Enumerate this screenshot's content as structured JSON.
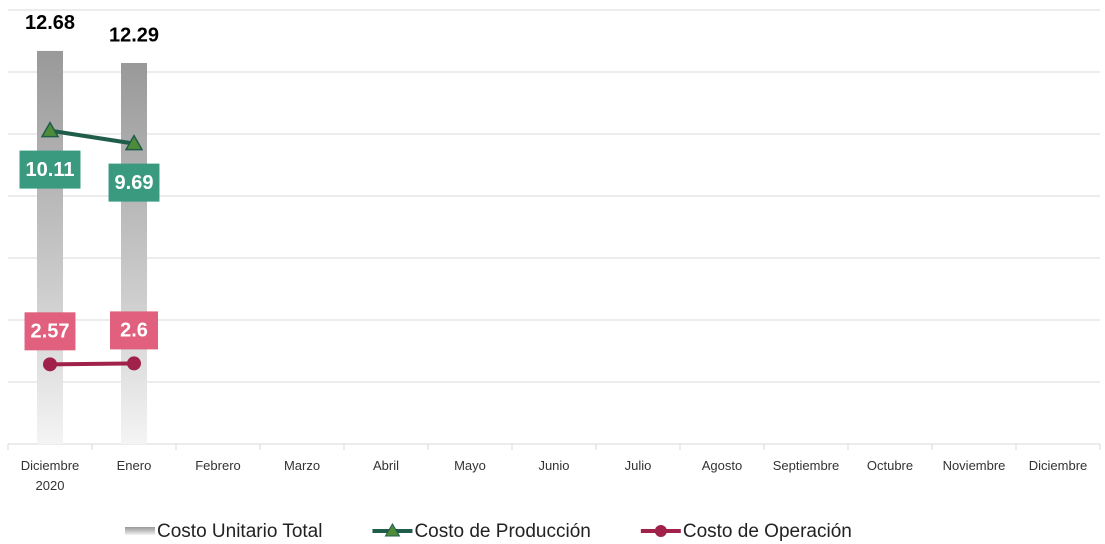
{
  "chart_data": {
    "type": "bar-line",
    "categories": [
      "Diciembre 2020",
      "Enero",
      "Febrero",
      "Marzo",
      "Abril",
      "Mayo",
      "Junio",
      "Julio",
      "Agosto",
      "Septiembre",
      "Octubre",
      "Noviembre",
      "Diciembre"
    ],
    "series": [
      {
        "name": "Costo Unitario Total",
        "type": "bar",
        "color": "#a6a6a6",
        "values": [
          12.68,
          12.29,
          null,
          null,
          null,
          null,
          null,
          null,
          null,
          null,
          null,
          null,
          null
        ]
      },
      {
        "name": "Costo de Producción",
        "type": "line",
        "color": "#1f5c4a",
        "marker": "triangle",
        "marker_color": "#4e8c3a",
        "label_color": "#3a9a80",
        "values": [
          10.11,
          9.69,
          null,
          null,
          null,
          null,
          null,
          null,
          null,
          null,
          null,
          null,
          null
        ]
      },
      {
        "name": "Costo de Operación",
        "type": "line",
        "color": "#a0214a",
        "marker": "circle",
        "marker_color": "#a0214a",
        "label_color": "#e0607e",
        "values": [
          2.57,
          2.6,
          null,
          null,
          null,
          null,
          null,
          null,
          null,
          null,
          null,
          null,
          null
        ]
      }
    ],
    "ylim": [
      0,
      14
    ],
    "yticks": [
      0,
      2,
      4,
      6,
      8,
      10,
      12,
      14
    ],
    "grid": true,
    "legend": "bottom"
  }
}
